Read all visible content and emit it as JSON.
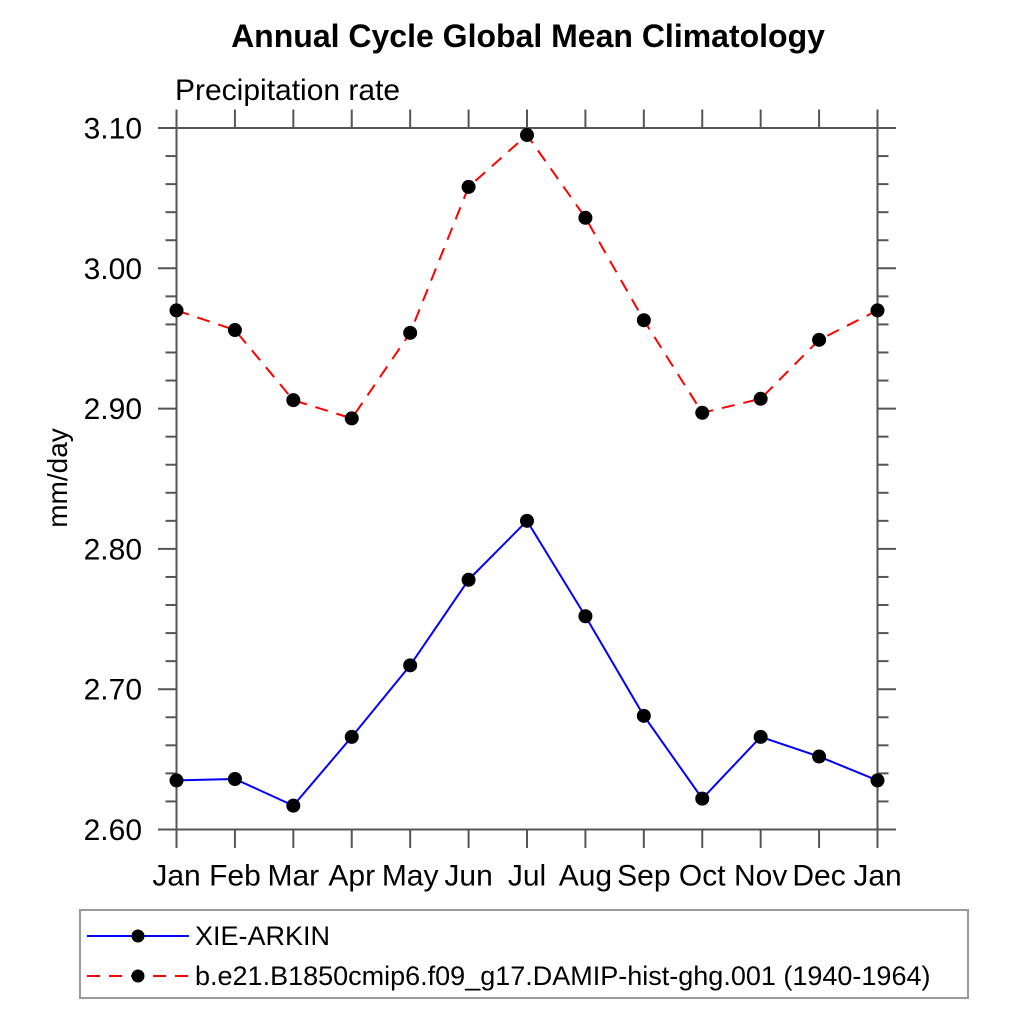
{
  "chart_data": {
    "type": "line",
    "title": "Annual Cycle Global Mean Climatology",
    "subtitle": "Precipitation rate",
    "ylabel": "mm/day",
    "xlabel": "",
    "ylim": [
      2.6,
      3.1
    ],
    "ytick_labels": [
      "2.60",
      "2.70",
      "2.80",
      "2.90",
      "3.00",
      "3.10"
    ],
    "ytick_step": 0.1,
    "yminor_step": 0.02,
    "grid": false,
    "legend_position": "bottom-left-box",
    "axis_color": "#555555",
    "marker": {
      "shape": "circle",
      "color": "#000000"
    },
    "categories": [
      "Jan",
      "Feb",
      "Mar",
      "Apr",
      "May",
      "Jun",
      "Jul",
      "Aug",
      "Sep",
      "Oct",
      "Nov",
      "Dec",
      "Jan"
    ],
    "series": [
      {
        "name": "XIE-ARKIN",
        "color": "#0000ff",
        "line_style": "solid",
        "values": [
          2.635,
          2.636,
          2.617,
          2.666,
          2.717,
          2.778,
          2.82,
          2.752,
          2.681,
          2.622,
          2.666,
          2.652,
          2.635
        ]
      },
      {
        "name": "b.e21.B1850cmip6.f09_g17.DAMIP-hist-ghg.001 (1940-1964)",
        "color": "#ff0000",
        "line_style": "dashed",
        "values": [
          2.97,
          2.956,
          2.906,
          2.893,
          2.954,
          3.058,
          3.095,
          3.036,
          2.963,
          2.897,
          2.907,
          2.949,
          2.97
        ]
      }
    ]
  }
}
